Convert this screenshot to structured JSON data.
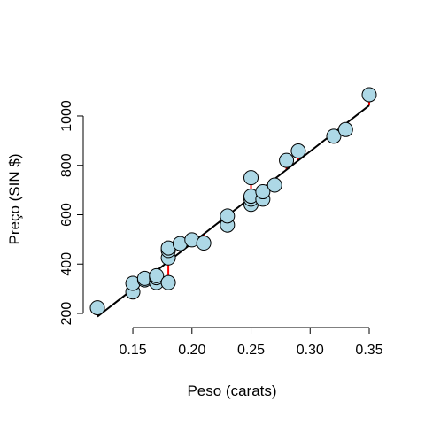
{
  "chart_data": {
    "type": "scatter",
    "title": "",
    "xlabel": "Peso (carats)",
    "ylabel": "Preço (SIN $)",
    "xlim": [
      0.12,
      0.35
    ],
    "ylim": [
      200,
      1086
    ],
    "xticks": [
      0.15,
      0.2,
      0.25,
      0.3,
      0.35
    ],
    "xtick_labels": [
      "0.15",
      "0.20",
      "0.25",
      "0.30",
      "0.35"
    ],
    "yticks": [
      200,
      400,
      600,
      800,
      1000
    ],
    "ytick_labels": [
      "200",
      "400",
      "600",
      "800",
      "1000"
    ],
    "grid": false,
    "legend": "none",
    "point_color": "#add8e6",
    "point_edge_color": "#000000",
    "fit_line_color": "#000000",
    "residual_color": "#ff0000",
    "regression": {
      "intercept": -259.6,
      "slope": 3721.0
    },
    "points": [
      {
        "x": 0.12,
        "y": 223
      },
      {
        "x": 0.15,
        "y": 287
      },
      {
        "x": 0.15,
        "y": 322
      },
      {
        "x": 0.16,
        "y": 336
      },
      {
        "x": 0.16,
        "y": 342
      },
      {
        "x": 0.17,
        "y": 325
      },
      {
        "x": 0.17,
        "y": 345
      },
      {
        "x": 0.17,
        "y": 353
      },
      {
        "x": 0.18,
        "y": 325
      },
      {
        "x": 0.18,
        "y": 425
      },
      {
        "x": 0.18,
        "y": 455
      },
      {
        "x": 0.18,
        "y": 465
      },
      {
        "x": 0.19,
        "y": 483
      },
      {
        "x": 0.2,
        "y": 498
      },
      {
        "x": 0.21,
        "y": 485
      },
      {
        "x": 0.23,
        "y": 558
      },
      {
        "x": 0.23,
        "y": 595
      },
      {
        "x": 0.25,
        "y": 642
      },
      {
        "x": 0.25,
        "y": 663
      },
      {
        "x": 0.25,
        "y": 675
      },
      {
        "x": 0.25,
        "y": 750
      },
      {
        "x": 0.26,
        "y": 663
      },
      {
        "x": 0.26,
        "y": 693
      },
      {
        "x": 0.27,
        "y": 720
      },
      {
        "x": 0.28,
        "y": 820
      },
      {
        "x": 0.29,
        "y": 858
      },
      {
        "x": 0.32,
        "y": 918
      },
      {
        "x": 0.33,
        "y": 945
      },
      {
        "x": 0.35,
        "y": 1086
      }
    ]
  }
}
